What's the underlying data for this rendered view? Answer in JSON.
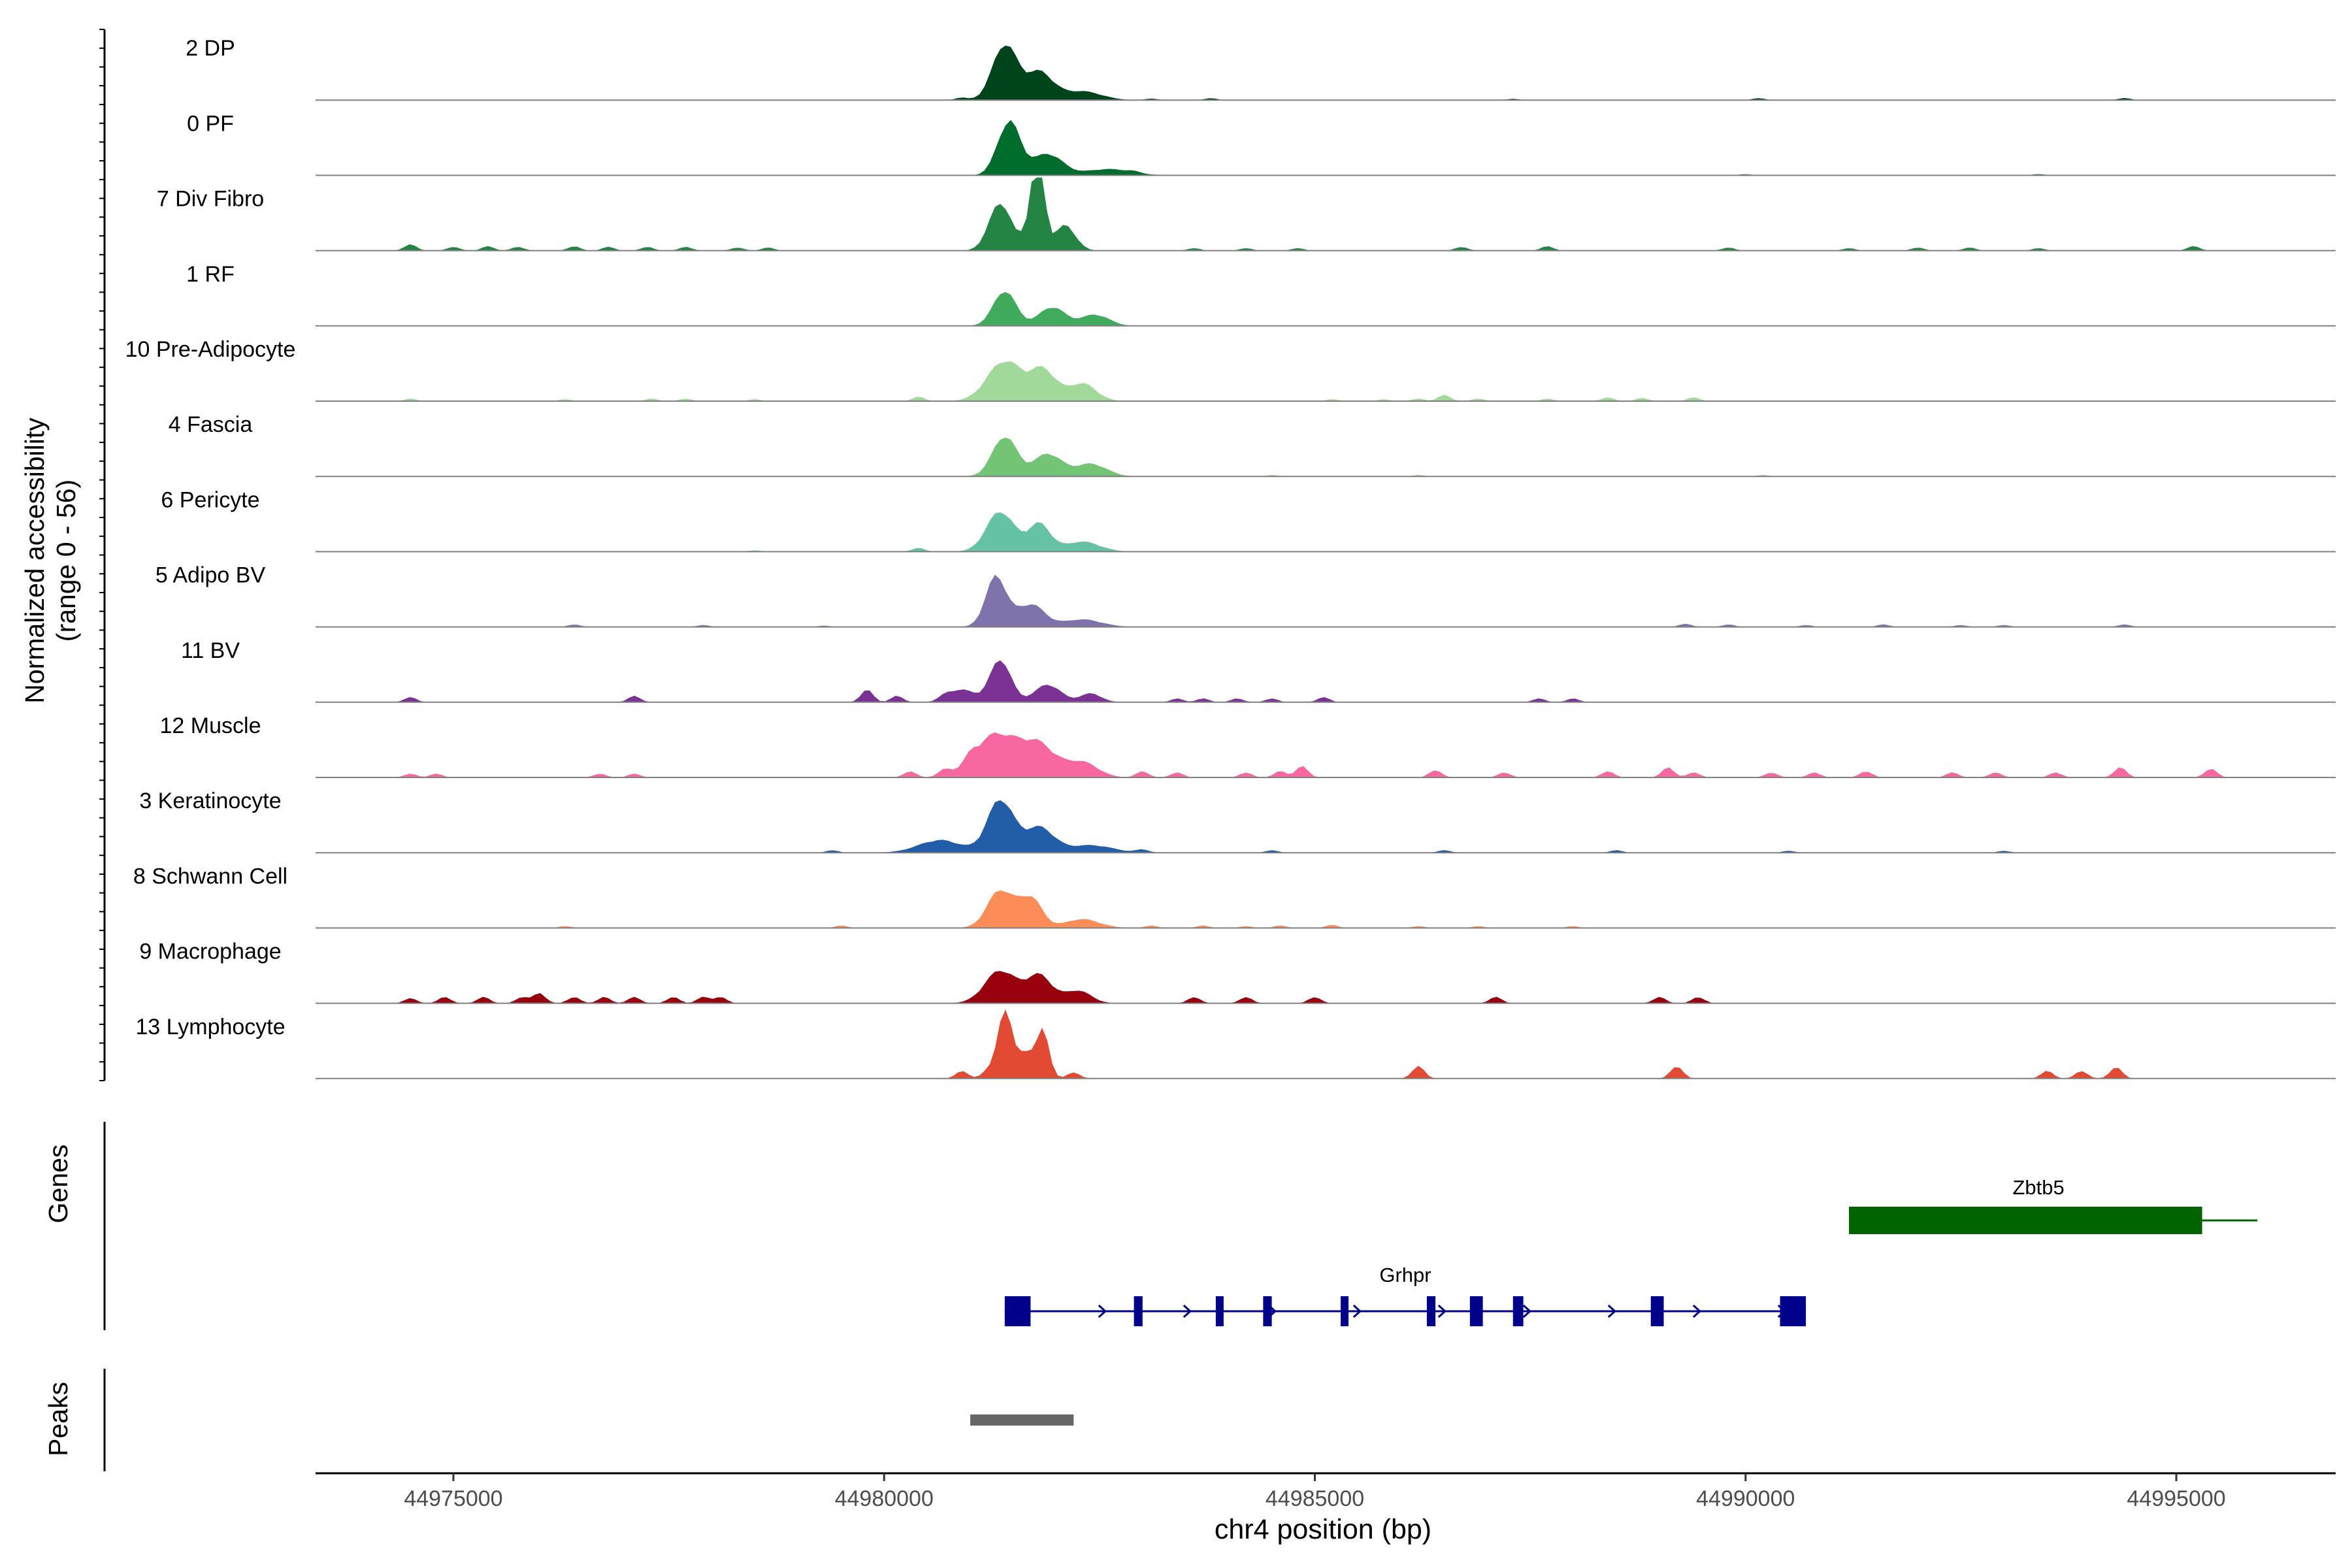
{
  "chart_data": {
    "type": "area",
    "ylabel_line1": "Normalized accessibility",
    "ylabel_line2": "(range 0 - 56)",
    "y_range": [
      0,
      56
    ],
    "xlabel": "chr4 position (bp)",
    "x_range": [
      44973400,
      44996850
    ],
    "x_ticks": [
      44975000,
      44980000,
      44985000,
      44990000,
      44995000
    ],
    "x_tick_labels": [
      "44975000",
      "44980000",
      "44985000",
      "44990000",
      "44995000"
    ],
    "tracks": [
      {
        "name": "2 DP",
        "color": "#00441b",
        "peaks": [
          [
            44981400,
            44,
            140
          ],
          [
            44981800,
            22,
            160
          ],
          [
            44982300,
            7,
            220
          ]
        ],
        "bumps": [
          [
            44980900,
            2
          ],
          [
            44983100,
            1.2
          ],
          [
            44983800,
            1.5
          ],
          [
            44987300,
            1
          ],
          [
            44990150,
            1.5
          ],
          [
            44994400,
            1.6
          ]
        ]
      },
      {
        "name": "0 PF",
        "color": "#006d2c",
        "peaks": [
          [
            44981450,
            43,
            130
          ],
          [
            44981900,
            17,
            170
          ],
          [
            44982600,
            5,
            260
          ]
        ],
        "bumps": [
          [
            44982900,
            1.2
          ],
          [
            44990000,
            1
          ],
          [
            44993400,
            1
          ]
        ]
      },
      {
        "name": "7 Div Fibro",
        "color": "#238443",
        "peaks": [
          [
            44981350,
            38,
            130
          ],
          [
            44981750,
            40,
            90
          ],
          [
            44981800,
            52,
            60
          ],
          [
            44982100,
            20,
            120
          ]
        ],
        "bumps": [
          [
            44974500,
            5
          ],
          [
            44975000,
            3
          ],
          [
            44975400,
            3.5
          ],
          [
            44975750,
            3
          ],
          [
            44976400,
            3.5
          ],
          [
            44976800,
            3
          ],
          [
            44977250,
            3
          ],
          [
            44977700,
            3
          ],
          [
            44978300,
            2.5
          ],
          [
            44978650,
            2.5
          ],
          [
            44983600,
            2
          ],
          [
            44984200,
            2
          ],
          [
            44984800,
            2
          ],
          [
            44986700,
            3
          ],
          [
            44987700,
            3.5
          ],
          [
            44989800,
            2.5
          ],
          [
            44991200,
            2
          ],
          [
            44992000,
            2.5
          ],
          [
            44992600,
            2.5
          ],
          [
            44993400,
            2
          ],
          [
            44995200,
            3.5
          ]
        ]
      },
      {
        "name": "1 RF",
        "color": "#41ab5d",
        "peaks": [
          [
            44981400,
            28,
            130
          ],
          [
            44981950,
            15,
            150
          ],
          [
            44982450,
            9,
            160
          ]
        ],
        "bumps": []
      },
      {
        "name": "10 Pre-Adipocyte",
        "color": "#a1d99b",
        "peaks": [
          [
            44981400,
            32,
            200
          ],
          [
            44981850,
            24,
            150
          ],
          [
            44982300,
            14,
            160
          ]
        ],
        "bumps": [
          [
            44974500,
            2
          ],
          [
            44976300,
            1.5
          ],
          [
            44977300,
            2
          ],
          [
            44977700,
            2
          ],
          [
            44978500,
            1.5
          ],
          [
            44980400,
            3.5
          ],
          [
            44985200,
            1.5
          ],
          [
            44985800,
            1.5
          ],
          [
            44986200,
            2
          ],
          [
            44986500,
            5
          ],
          [
            44986900,
            2
          ],
          [
            44987700,
            2
          ],
          [
            44988400,
            3
          ],
          [
            44988800,
            2.5
          ],
          [
            44989400,
            3
          ]
        ]
      },
      {
        "name": "4 Fascia",
        "color": "#74c476",
        "peaks": [
          [
            44981400,
            32,
            140
          ],
          [
            44981900,
            18,
            160
          ],
          [
            44982400,
            10,
            180
          ]
        ],
        "bumps": [
          [
            44984500,
            1
          ],
          [
            44986200,
            1
          ],
          [
            44990200,
            1
          ]
        ]
      },
      {
        "name": "6 Pericyte",
        "color": "#66c2a4",
        "peaks": [
          [
            44981350,
            32,
            160
          ],
          [
            44981800,
            22,
            130
          ],
          [
            44982300,
            8,
            200
          ]
        ],
        "bumps": [
          [
            44980400,
            3
          ],
          [
            44978500,
            1
          ]
        ]
      },
      {
        "name": "5 Adipo BV",
        "color": "#8073ac",
        "peaks": [
          [
            44981300,
            40,
            120
          ],
          [
            44981700,
            18,
            160
          ],
          [
            44982300,
            6,
            220
          ]
        ],
        "bumps": [
          [
            44976400,
            2
          ],
          [
            44977900,
            1.5
          ],
          [
            44979300,
            1
          ],
          [
            44989300,
            2.5
          ],
          [
            44989800,
            2
          ],
          [
            44990700,
            1.5
          ],
          [
            44991600,
            2
          ],
          [
            44992500,
            1.5
          ],
          [
            44993000,
            1.5
          ],
          [
            44994400,
            2
          ]
        ]
      },
      {
        "name": "11 BV",
        "color": "#7b3294",
        "peaks": [
          [
            44981350,
            34,
            120
          ],
          [
            44980900,
            10,
            150
          ],
          [
            44981900,
            14,
            150
          ],
          [
            44982400,
            7,
            120
          ]
        ],
        "bumps": [
          [
            44974500,
            4
          ],
          [
            44977100,
            5
          ],
          [
            44979800,
            10
          ],
          [
            44980150,
            5
          ],
          [
            44980700,
            3
          ],
          [
            44983400,
            3
          ],
          [
            44983700,
            3
          ],
          [
            44984100,
            3
          ],
          [
            44984500,
            3
          ],
          [
            44985100,
            4
          ],
          [
            44987600,
            3
          ],
          [
            44988000,
            3
          ]
        ]
      },
      {
        "name": "12 Muscle",
        "color": "#f768a1",
        "peaks": [
          [
            44981300,
            34,
            250
          ],
          [
            44981800,
            24,
            200
          ],
          [
            44982300,
            12,
            180
          ]
        ],
        "bumps": [
          [
            44974500,
            3
          ],
          [
            44974800,
            3
          ],
          [
            44976700,
            3
          ],
          [
            44977100,
            3
          ],
          [
            44980300,
            5
          ],
          [
            44980700,
            5
          ],
          [
            44981000,
            5
          ],
          [
            44983000,
            5
          ],
          [
            44983400,
            4
          ],
          [
            44984200,
            4
          ],
          [
            44984600,
            5
          ],
          [
            44984850,
            9
          ],
          [
            44986400,
            6
          ],
          [
            44987200,
            4
          ],
          [
            44988400,
            5
          ],
          [
            44989100,
            8
          ],
          [
            44989400,
            4
          ],
          [
            44990300,
            4
          ],
          [
            44990800,
            4
          ],
          [
            44991400,
            5
          ],
          [
            44992400,
            4
          ],
          [
            44992900,
            4
          ],
          [
            44993600,
            4
          ],
          [
            44994350,
            8
          ],
          [
            44995400,
            7
          ]
        ]
      },
      {
        "name": "3 Keratinocyte",
        "color": "#225ea8",
        "peaks": [
          [
            44981350,
            42,
            150
          ],
          [
            44981800,
            20,
            170
          ],
          [
            44980650,
            10,
            250
          ],
          [
            44982400,
            6,
            250
          ]
        ],
        "bumps": [
          [
            44979400,
            2
          ],
          [
            44983000,
            2.5
          ],
          [
            44984500,
            2
          ],
          [
            44986500,
            2
          ],
          [
            44988500,
            2
          ],
          [
            44990500,
            1.5
          ],
          [
            44993000,
            1.5
          ]
        ]
      },
      {
        "name": "8 Schwann Cell",
        "color": "#fc8d59",
        "peaks": [
          [
            44981350,
            30,
            150
          ],
          [
            44981700,
            24,
            130
          ],
          [
            44982300,
            7,
            200
          ]
        ],
        "bumps": [
          [
            44976300,
            1.5
          ],
          [
            44979500,
            2
          ],
          [
            44983100,
            2
          ],
          [
            44983700,
            2
          ],
          [
            44984200,
            1.5
          ],
          [
            44984600,
            2
          ],
          [
            44985200,
            2.5
          ],
          [
            44986200,
            1.5
          ],
          [
            44986900,
            1.5
          ],
          [
            44988000,
            1.5
          ]
        ]
      },
      {
        "name": "9 Macrophage",
        "color": "#99000d",
        "peaks": [
          [
            44981350,
            26,
            180
          ],
          [
            44981800,
            22,
            150
          ],
          [
            44982250,
            10,
            150
          ]
        ],
        "bumps": [
          [
            44974500,
            4
          ],
          [
            44974900,
            5
          ],
          [
            44975350,
            5
          ],
          [
            44975800,
            5
          ],
          [
            44976000,
            8
          ],
          [
            44976400,
            5
          ],
          [
            44976750,
            5
          ],
          [
            44977100,
            5
          ],
          [
            44977550,
            5
          ],
          [
            44977900,
            5
          ],
          [
            44978100,
            5
          ],
          [
            44983600,
            5
          ],
          [
            44984200,
            5
          ],
          [
            44985000,
            5
          ],
          [
            44987100,
            5
          ],
          [
            44989000,
            5
          ],
          [
            44989450,
            5
          ]
        ]
      },
      {
        "name": "13 Lymphocyte",
        "color": "#e34a33",
        "peaks": [
          [
            44981400,
            56,
            80
          ],
          [
            44981850,
            36,
            70
          ],
          [
            44981650,
            22,
            100
          ]
        ],
        "bumps": [
          [
            44980900,
            6
          ],
          [
            44981200,
            6
          ],
          [
            44982200,
            5
          ],
          [
            44986200,
            10
          ],
          [
            44989200,
            10
          ],
          [
            44993500,
            6
          ],
          [
            44993900,
            6
          ],
          [
            44994300,
            9
          ]
        ]
      }
    ],
    "genes": [
      {
        "name": "Grhpr",
        "color": "#00008b",
        "strand": "+",
        "start": 44981400,
        "end": 44990700,
        "exons": [
          [
            44981400,
            44981700
          ],
          [
            44982900,
            44983000
          ],
          [
            44983850,
            44983900
          ],
          [
            44984400,
            44984500
          ],
          [
            44985300,
            44985380
          ],
          [
            44986300,
            44986400
          ],
          [
            44986800,
            44986950
          ],
          [
            44987300,
            44987420
          ],
          [
            44988900,
            44989050
          ],
          [
            44990400,
            44990700
          ]
        ]
      },
      {
        "name": "Zbtb5",
        "color": "#006400",
        "strand": "+",
        "start": 44991200,
        "end": 44995600,
        "exons": [
          [
            44991200,
            44995300
          ]
        ]
      }
    ],
    "genes_label": "Genes",
    "peaks_label": "Peaks",
    "peak_regions": [
      [
        44981000,
        44982200
      ]
    ],
    "peak_color": "#666666"
  }
}
